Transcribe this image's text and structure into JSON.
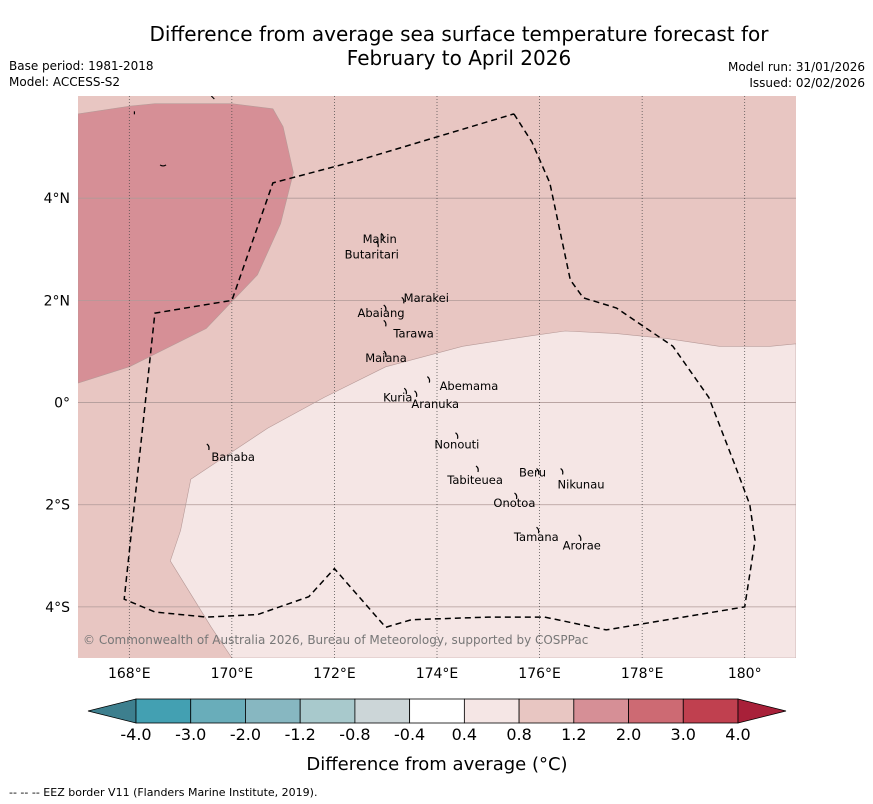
{
  "header": {
    "title_line1": "Difference from average sea surface temperature forecast for",
    "title_line2": "February to April 2026",
    "base_period": "Base period: 1981-2018",
    "model": "Model: ACCESS-S2",
    "model_run": "Model run: 31/01/2026",
    "issued": "Issued: 02/02/2026"
  },
  "map": {
    "lon_range": [
      167.0,
      181.0
    ],
    "lat_range": [
      -5.0,
      6.0
    ],
    "lat_ticks": [
      {
        "value": 4,
        "label": "4°N"
      },
      {
        "value": 2,
        "label": "2°N"
      },
      {
        "value": 0,
        "label": "0°"
      },
      {
        "value": -2,
        "label": "2°S"
      },
      {
        "value": -4,
        "label": "4°S"
      }
    ],
    "lon_ticks": [
      {
        "value": 168,
        "label": "168°E"
      },
      {
        "value": 170,
        "label": "170°E"
      },
      {
        "value": 172,
        "label": "172°E"
      },
      {
        "value": 174,
        "label": "174°E"
      },
      {
        "value": 176,
        "label": "176°E"
      },
      {
        "value": 178,
        "label": "178°E"
      },
      {
        "value": 180,
        "label": "180°"
      }
    ],
    "copyright": "© Commonwealth of Australia 2026, Bureau of Meteorology, supported by COSPPac",
    "anomaly_zones": [
      {
        "range": "0.4 to 0.8",
        "color": "#f5e6e5",
        "outline": [
          [
            169.2,
            -1.5
          ],
          [
            169.8,
            -1.1
          ],
          [
            170.7,
            -0.5
          ],
          [
            171.8,
            0.1
          ],
          [
            173.0,
            0.7
          ],
          [
            174.5,
            1.1
          ],
          [
            175.8,
            1.3
          ],
          [
            176.5,
            1.4
          ],
          [
            177.5,
            1.35
          ],
          [
            178.5,
            1.25
          ],
          [
            179.5,
            1.1
          ],
          [
            180.5,
            1.1
          ],
          [
            181.0,
            1.15
          ],
          [
            181.0,
            -5.0
          ],
          [
            170.0,
            -5.0
          ],
          [
            169.6,
            -4.4
          ],
          [
            168.8,
            -3.1
          ],
          [
            169.0,
            -2.5
          ]
        ]
      },
      {
        "range": "1.2 to 2.0",
        "color": "#d68f96",
        "outline": [
          [
            167.0,
            5.65
          ],
          [
            168.0,
            5.8
          ],
          [
            168.5,
            5.85
          ],
          [
            170.0,
            5.85
          ],
          [
            170.8,
            5.75
          ],
          [
            171.0,
            5.4
          ],
          [
            171.2,
            4.5
          ],
          [
            170.95,
            3.5
          ],
          [
            170.5,
            2.5
          ],
          [
            169.5,
            1.45
          ],
          [
            168.0,
            0.7
          ],
          [
            167.0,
            0.38
          ]
        ]
      }
    ],
    "eez_border": [
      [
        175.5,
        5.65
      ],
      [
        175.85,
        5.1
      ],
      [
        176.2,
        4.3
      ],
      [
        176.6,
        2.4
      ],
      [
        176.85,
        2.05
      ],
      [
        177.5,
        1.85
      ],
      [
        178.6,
        1.1
      ],
      [
        179.3,
        0.1
      ],
      [
        179.8,
        -1.2
      ],
      [
        180.1,
        -2.0
      ],
      [
        180.2,
        -2.7
      ],
      [
        180.0,
        -4.0
      ],
      [
        177.3,
        -4.45
      ],
      [
        176.1,
        -4.2
      ],
      [
        175.0,
        -4.2
      ],
      [
        173.5,
        -4.25
      ],
      [
        173.0,
        -4.4
      ],
      [
        172.0,
        -3.25
      ],
      [
        171.5,
        -3.8
      ],
      [
        170.5,
        -4.15
      ],
      [
        169.5,
        -4.2
      ],
      [
        168.5,
        -4.1
      ],
      [
        167.9,
        -3.85
      ],
      [
        168.5,
        1.75
      ],
      [
        170.0,
        2.0
      ],
      [
        170.8,
        4.3
      ],
      [
        172.5,
        4.75
      ],
      [
        175.5,
        5.65
      ]
    ],
    "islands": [
      {
        "name": "Makin",
        "lon": 172.95,
        "lat": 3.25,
        "label_lon": 172.55,
        "label_lat": 3.2
      },
      {
        "name": "Butaritari",
        "lon": 172.85,
        "lat": 3.1,
        "label_lon": 172.2,
        "label_lat": 2.9
      },
      {
        "name": "Marakei",
        "lon": 173.35,
        "lat": 2.0,
        "label_lon": 173.35,
        "label_lat": 2.05
      },
      {
        "name": "Abaiang",
        "lon": 173.0,
        "lat": 1.85,
        "label_lon": 172.45,
        "label_lat": 1.75
      },
      {
        "name": "Tarawa",
        "lon": 173.0,
        "lat": 1.55,
        "label_lon": 173.15,
        "label_lat": 1.35
      },
      {
        "name": "Maiana",
        "lon": 173.0,
        "lat": 0.95,
        "label_lon": 172.6,
        "label_lat": 0.87
      },
      {
        "name": "Abemama",
        "lon": 173.85,
        "lat": 0.45,
        "label_lon": 174.05,
        "label_lat": 0.32
      },
      {
        "name": "Kuria",
        "lon": 173.4,
        "lat": 0.22,
        "label_lon": 172.95,
        "label_lat": 0.1
      },
      {
        "name": "Aranuka",
        "lon": 173.6,
        "lat": 0.17,
        "label_lon": 173.5,
        "label_lat": -0.03
      },
      {
        "name": "Nonouti",
        "lon": 174.4,
        "lat": -0.65,
        "label_lon": 173.95,
        "label_lat": -0.82
      },
      {
        "name": "Banaba",
        "lon": 169.55,
        "lat": -0.87,
        "label_lon": 169.6,
        "label_lat": -1.07
      },
      {
        "name": "Tabiteuea",
        "lon": 174.8,
        "lat": -1.3,
        "label_lon": 174.2,
        "label_lat": -1.52
      },
      {
        "name": "Beru",
        "lon": 175.98,
        "lat": -1.35,
        "label_lon": 175.6,
        "label_lat": -1.37
      },
      {
        "name": "Nikunau",
        "lon": 176.45,
        "lat": -1.35,
        "label_lon": 176.35,
        "label_lat": -1.6
      },
      {
        "name": "Onotoa",
        "lon": 175.55,
        "lat": -1.83,
        "label_lon": 175.1,
        "label_lat": -1.97
      },
      {
        "name": "Tamana",
        "lon": 175.98,
        "lat": -2.5,
        "label_lon": 175.5,
        "label_lat": -2.63
      },
      {
        "name": "Arorae",
        "lon": 176.8,
        "lat": -2.65,
        "label_lon": 176.45,
        "label_lat": -2.8
      }
    ]
  },
  "colorbar": {
    "title": "Difference from average (°C)",
    "tick_labels": [
      "-4.0",
      "-3.0",
      "-2.0",
      "-1.2",
      "-0.8",
      "-0.4",
      "0.4",
      "0.8",
      "1.2",
      "2.0",
      "3.0",
      "4.0"
    ],
    "under_color": "#3d7f8e",
    "over_color": "#a82039",
    "colors": [
      "#43a0b2",
      "#69adba",
      "#87b7c1",
      "#a8c9cc",
      "#ccd6d8",
      "#ffffff",
      "#f5e6e5",
      "#e8c6c2",
      "#d68f96",
      "#cd6a73",
      "#c0404f"
    ]
  },
  "footnote": "--  --  -- EEZ border V11 (Flanders Marine Institute, 2019)."
}
